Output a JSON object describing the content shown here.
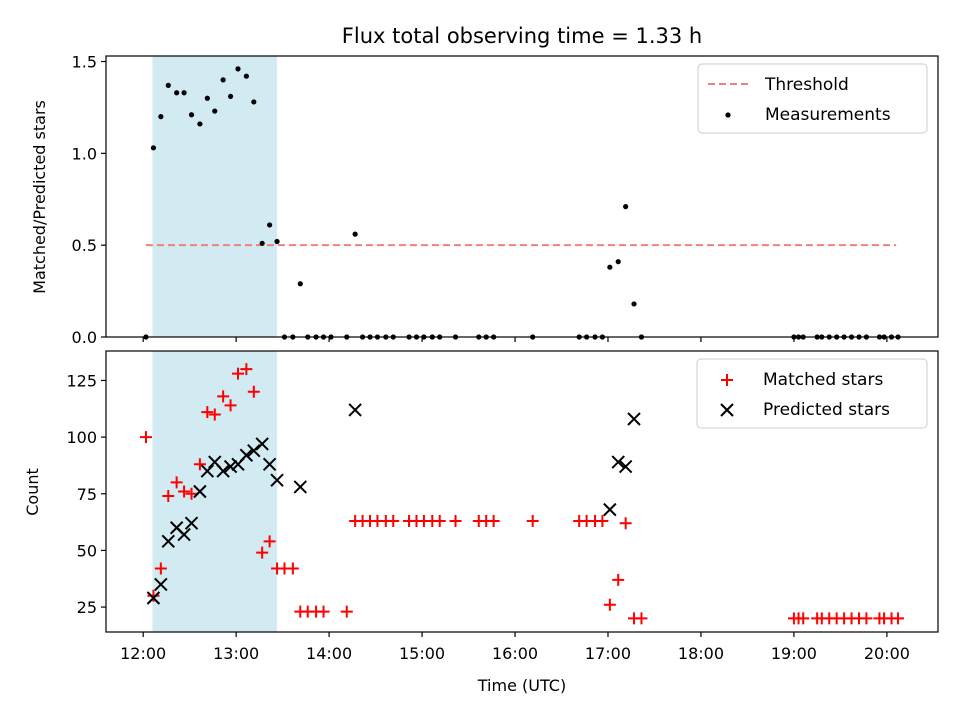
{
  "chart_data": {
    "type": "scatter",
    "title": "Flux total observing time = 1.33 h",
    "xlabel": "Time (UTC)",
    "x_unit": "hours",
    "xlim": [
      11.6,
      20.55
    ],
    "xticks": [
      12,
      13,
      14,
      15,
      16,
      17,
      18,
      19,
      20
    ],
    "xtick_labels": [
      "12:00",
      "13:00",
      "14:00",
      "15:00",
      "16:00",
      "17:00",
      "18:00",
      "19:00",
      "20:00"
    ],
    "colors": {
      "shade": "#add8e6",
      "threshold": "#f08080",
      "measurement": "#000000",
      "matched": "#ff0000",
      "predicted": "#000000"
    },
    "shaded_interval": [
      12.1,
      13.44
    ],
    "top": {
      "ylabel": "Matched/Predicted stars",
      "ylim": [
        0,
        1.53
      ],
      "yticks": [
        0.0,
        0.5,
        1.0,
        1.5
      ],
      "ytick_labels": [
        "0.0",
        "0.5",
        "1.0",
        "1.5"
      ],
      "threshold": {
        "name": "Threshold",
        "value": 0.5,
        "x_range": [
          12.03,
          20.1
        ]
      },
      "measurements": {
        "name": "Measurements",
        "x": [
          12.03,
          12.11,
          12.19,
          12.27,
          12.36,
          12.44,
          12.52,
          12.61,
          12.69,
          12.77,
          12.86,
          12.94,
          13.02,
          13.11,
          13.19,
          13.28,
          13.36,
          13.44,
          13.52,
          13.61,
          13.69,
          13.77,
          13.86,
          13.94,
          14.02,
          14.19,
          14.28,
          14.36,
          14.44,
          14.52,
          14.61,
          14.69,
          14.86,
          14.94,
          15.02,
          15.11,
          15.19,
          15.36,
          15.61,
          15.69,
          15.77,
          16.19,
          16.69,
          16.77,
          16.86,
          16.94,
          17.02,
          17.11,
          17.19,
          17.28,
          17.36,
          19.0,
          19.05,
          19.1,
          19.25,
          19.3,
          19.38,
          19.46,
          19.54,
          19.62,
          19.7,
          19.78,
          19.92,
          19.97,
          20.05,
          20.12
        ],
        "y": [
          0.0,
          1.03,
          1.2,
          1.37,
          1.33,
          1.33,
          1.21,
          1.16,
          1.3,
          1.23,
          1.4,
          1.31,
          1.46,
          1.42,
          1.28,
          0.51,
          0.61,
          0.52,
          0.0,
          0.0,
          0.29,
          0.0,
          0.0,
          0.0,
          0.0,
          0.0,
          0.56,
          0.0,
          0.0,
          0.0,
          0.0,
          0.0,
          0.0,
          0.0,
          0.0,
          0.0,
          0.0,
          0.0,
          0.0,
          0.0,
          0.0,
          0.0,
          0.0,
          0.0,
          0.0,
          0.0,
          0.38,
          0.41,
          0.71,
          0.18,
          0.0,
          0.0,
          0.0,
          0.0,
          0.0,
          0.0,
          0.0,
          0.0,
          0.0,
          0.0,
          0.0,
          0.0,
          0.0,
          0.0,
          0.0,
          0.0
        ]
      }
    },
    "bottom": {
      "ylabel": "Count",
      "ylim": [
        14,
        138
      ],
      "yticks": [
        25,
        50,
        75,
        100,
        125
      ],
      "ytick_labels": [
        "25",
        "50",
        "75",
        "100",
        "125"
      ],
      "matched": {
        "name": "Matched stars",
        "x": [
          12.03,
          12.11,
          12.19,
          12.27,
          12.36,
          12.44,
          12.52,
          12.61,
          12.69,
          12.77,
          12.86,
          12.94,
          13.02,
          13.11,
          13.19,
          13.28,
          13.36,
          13.44,
          13.52,
          13.61,
          13.69,
          13.77,
          13.86,
          13.94,
          14.19,
          14.28,
          14.36,
          14.44,
          14.52,
          14.61,
          14.69,
          14.86,
          14.94,
          15.02,
          15.11,
          15.19,
          15.36,
          15.61,
          15.69,
          15.77,
          16.19,
          16.69,
          16.77,
          16.86,
          16.94,
          17.02,
          17.11,
          17.19,
          17.28,
          17.36,
          19.0,
          19.05,
          19.1,
          19.25,
          19.3,
          19.38,
          19.46,
          19.54,
          19.62,
          19.7,
          19.78,
          19.92,
          19.97,
          20.05,
          20.12
        ],
        "y": [
          100,
          30,
          42,
          74,
          80,
          76,
          75,
          88,
          111,
          110,
          118,
          114,
          128,
          130,
          120,
          49,
          54,
          42,
          42,
          42,
          23,
          23,
          23,
          23,
          23,
          63,
          63,
          63,
          63,
          63,
          63,
          63,
          63,
          63,
          63,
          63,
          63,
          63,
          63,
          63,
          63,
          63,
          63,
          63,
          63,
          26,
          37,
          62,
          20,
          20,
          20,
          20,
          20,
          20,
          20,
          20,
          20,
          20,
          20,
          20,
          20,
          20,
          20,
          20,
          20
        ]
      },
      "predicted": {
        "name": "Predicted stars",
        "x": [
          12.11,
          12.19,
          12.27,
          12.36,
          12.44,
          12.52,
          12.61,
          12.69,
          12.77,
          12.86,
          12.94,
          13.02,
          13.11,
          13.19,
          13.28,
          13.36,
          13.44,
          13.69,
          14.28,
          17.02,
          17.11,
          17.19,
          17.28
        ],
        "y": [
          29,
          35,
          54,
          60,
          57,
          62,
          76,
          85,
          89,
          85,
          87,
          88,
          92,
          94,
          97,
          88,
          81,
          78,
          112,
          68,
          89,
          87,
          108
        ]
      }
    }
  }
}
